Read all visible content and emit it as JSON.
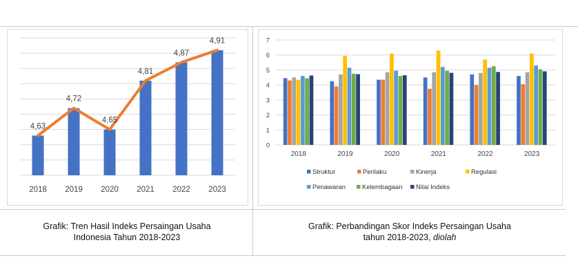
{
  "colors": {
    "bar_blue": "#4472c4",
    "trend_line": "#ed7d31",
    "Struktur": "#4472c4",
    "Perilaku": "#ed7d31",
    "Kinerja": "#a5a5a5",
    "Regulasi": "#ffc000",
    "Penawaran": "#5b9bd5",
    "Kelembagaan": "#70ad47",
    "Nilai Indeks": "#264478"
  },
  "captions": {
    "left_line1": "Grafik: Tren Hasil Indeks Persaingan Usaha",
    "left_line2": "Indonesia Tahun 2018-2023",
    "right_line1": "Grafik: Perbandingan Skor Indeks Persaingan Usaha",
    "right_line2_plain": "tahun 2018-2023, ",
    "right_line2_italic": "diolah"
  },
  "chart_data": [
    {
      "type": "bar",
      "overlay": "line",
      "title": "",
      "xlabel": "",
      "ylabel": "",
      "categories": [
        "2018",
        "2019",
        "2020",
        "2021",
        "2022",
        "2023"
      ],
      "values": [
        4.63,
        4.72,
        4.65,
        4.81,
        4.87,
        4.91
      ],
      "data_labels": [
        "4,63",
        "4,72",
        "4,65",
        "4,81",
        "4,87",
        "4,91"
      ],
      "ylim": [
        4.5,
        4.95
      ],
      "grid": true,
      "legend": "none"
    },
    {
      "type": "bar",
      "title": "",
      "xlabel": "",
      "ylabel": "",
      "categories": [
        "2018",
        "2019",
        "2020",
        "2021",
        "2022",
        "2023"
      ],
      "ylim": [
        0,
        7
      ],
      "yticks": [
        "0",
        "1",
        "2",
        "3",
        "4",
        "5",
        "6",
        "7"
      ],
      "grid": true,
      "legend": "bottom",
      "series": [
        {
          "name": "Struktur",
          "values": [
            4.45,
            4.25,
            4.35,
            4.5,
            4.7,
            4.6
          ]
        },
        {
          "name": "Perilaku",
          "values": [
            4.3,
            3.9,
            4.35,
            3.75,
            4.0,
            4.05
          ]
        },
        {
          "name": "Kinerja",
          "values": [
            4.5,
            4.7,
            4.85,
            4.85,
            4.8,
            4.85
          ]
        },
        {
          "name": "Regulasi",
          "values": [
            4.35,
            5.95,
            6.1,
            6.3,
            5.7,
            6.1
          ]
        },
        {
          "name": "Penawaran",
          "values": [
            4.6,
            5.15,
            4.95,
            5.2,
            5.15,
            5.3
          ]
        },
        {
          "name": "Kelembagaan",
          "values": [
            4.45,
            4.75,
            4.6,
            4.95,
            5.25,
            5.05
          ]
        },
        {
          "name": "Nilai Indeks",
          "values": [
            4.63,
            4.72,
            4.65,
            4.81,
            4.87,
            4.91
          ]
        }
      ]
    }
  ]
}
